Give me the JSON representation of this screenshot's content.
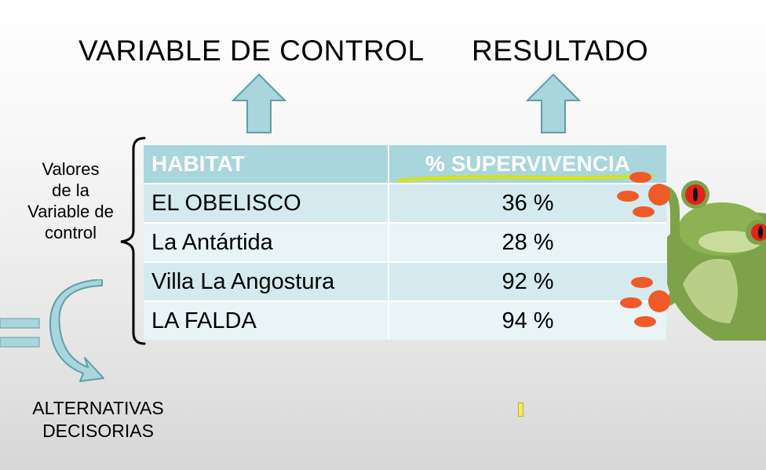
{
  "headings": {
    "control": "VARIABLE DE CONTROL",
    "result": "RESULTADO"
  },
  "side_label": [
    "Valores",
    "de la",
    "Variable de",
    "control"
  ],
  "bottom_label": [
    "ALTERNATIVAS",
    "DECISORIAS"
  ],
  "table": {
    "columns": [
      "HABITAT",
      "% SUPERVIVENCIA"
    ],
    "rows": [
      {
        "habitat": "EL OBELISCO",
        "survival": "36 %"
      },
      {
        "habitat": "La Antártida",
        "survival": "28 %"
      },
      {
        "habitat": "Villa La Angostura",
        "survival": "92 %"
      },
      {
        "habitat": "LA FALDA",
        "survival": "94 %"
      }
    ]
  },
  "colors": {
    "header_bg": "#a9d5dd",
    "row_bg_a": "#d4eaee",
    "row_bg_b": "#e8f4f6",
    "arrow_fill": "#a9d5dd",
    "arrow_stroke": "#5f9ea8",
    "highlight": "#d8e400"
  }
}
